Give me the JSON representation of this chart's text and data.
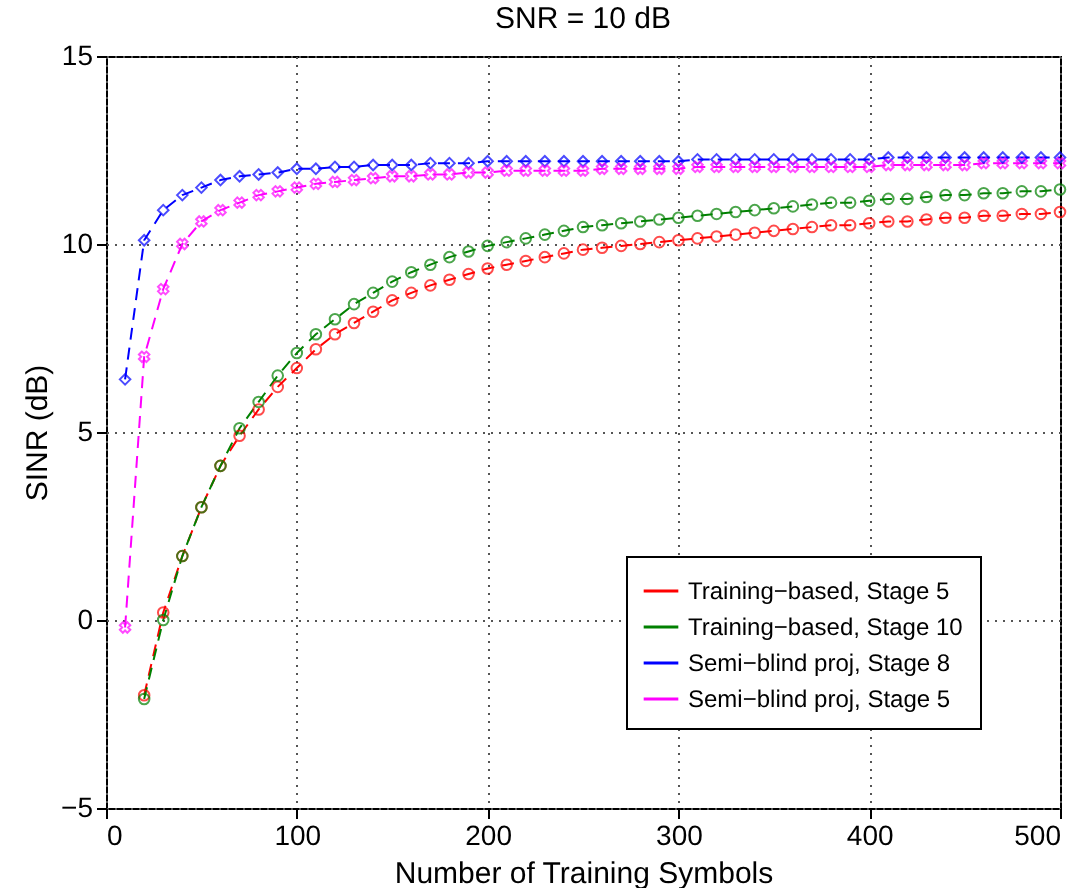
{
  "chart_data": {
    "type": "line",
    "title": "SNR = 10 dB",
    "xlabel": "Number of Training Symbols",
    "ylabel": "SINR (dB)",
    "x": [
      10,
      20,
      30,
      40,
      50,
      60,
      70,
      80,
      90,
      100,
      110,
      120,
      130,
      140,
      150,
      160,
      170,
      180,
      190,
      200,
      210,
      220,
      230,
      240,
      250,
      260,
      270,
      280,
      290,
      300,
      310,
      320,
      330,
      340,
      350,
      360,
      370,
      380,
      390,
      400,
      410,
      420,
      430,
      440,
      450,
      460,
      470,
      480,
      490,
      500
    ],
    "xlim": [
      0,
      500
    ],
    "xticks": [
      0,
      100,
      200,
      300,
      400,
      500
    ],
    "ylim": [
      -5,
      15
    ],
    "yticks": [
      -5,
      0,
      5,
      10,
      15
    ],
    "grid": true,
    "legend": "bottom right",
    "line_style": "dashed",
    "series": [
      {
        "name": "Training−based, Stage 5",
        "color": "#ff0000",
        "marker": "circle",
        "values": [
          null,
          -2.0,
          0.2,
          1.7,
          3.0,
          4.1,
          4.9,
          5.6,
          6.2,
          6.7,
          7.2,
          7.6,
          7.9,
          8.2,
          8.5,
          8.7,
          8.9,
          9.05,
          9.2,
          9.35,
          9.45,
          9.55,
          9.65,
          9.75,
          9.85,
          9.9,
          9.95,
          10.0,
          10.05,
          10.1,
          10.15,
          10.2,
          10.25,
          10.3,
          10.35,
          10.4,
          10.45,
          10.5,
          10.5,
          10.55,
          10.6,
          10.6,
          10.65,
          10.7,
          10.7,
          10.75,
          10.75,
          10.8,
          10.8,
          10.85
        ]
      },
      {
        "name": "Training−based, Stage 10",
        "color": "#008000",
        "marker": "circle",
        "values": [
          null,
          -2.1,
          0.0,
          1.7,
          3.0,
          4.1,
          5.1,
          5.8,
          6.5,
          7.1,
          7.6,
          8.0,
          8.4,
          8.7,
          9.0,
          9.25,
          9.45,
          9.65,
          9.8,
          9.95,
          10.05,
          10.15,
          10.25,
          10.35,
          10.45,
          10.5,
          10.55,
          10.6,
          10.65,
          10.7,
          10.75,
          10.8,
          10.85,
          10.9,
          10.95,
          11.0,
          11.05,
          11.1,
          11.1,
          11.15,
          11.2,
          11.2,
          11.25,
          11.3,
          11.3,
          11.35,
          11.35,
          11.4,
          11.4,
          11.45
        ]
      },
      {
        "name": "Semi−blind proj, Stage 8",
        "color": "#0000ff",
        "marker": "diamond",
        "values": [
          6.4,
          10.1,
          10.9,
          11.3,
          11.5,
          11.7,
          11.8,
          11.85,
          11.9,
          12.0,
          12.0,
          12.05,
          12.05,
          12.1,
          12.1,
          12.1,
          12.15,
          12.15,
          12.15,
          12.2,
          12.2,
          12.2,
          12.2,
          12.2,
          12.2,
          12.2,
          12.2,
          12.2,
          12.2,
          12.2,
          12.25,
          12.25,
          12.25,
          12.25,
          12.25,
          12.25,
          12.25,
          12.25,
          12.25,
          12.25,
          12.3,
          12.3,
          12.3,
          12.3,
          12.3,
          12.3,
          12.3,
          12.3,
          12.3,
          12.3
        ]
      },
      {
        "name": "Semi−blind proj, Stage 5",
        "color": "#ff00ff",
        "marker": "cross",
        "values": [
          -0.2,
          7.0,
          8.8,
          10.0,
          10.6,
          10.9,
          11.1,
          11.3,
          11.4,
          11.5,
          11.6,
          11.65,
          11.7,
          11.75,
          11.8,
          11.8,
          11.85,
          11.85,
          11.9,
          11.9,
          11.95,
          11.95,
          11.95,
          11.95,
          11.95,
          12.0,
          12.0,
          12.0,
          12.0,
          12.0,
          12.05,
          12.05,
          12.05,
          12.05,
          12.05,
          12.05,
          12.05,
          12.05,
          12.05,
          12.05,
          12.1,
          12.1,
          12.1,
          12.1,
          12.1,
          12.15,
          12.15,
          12.15,
          12.15,
          12.15
        ]
      }
    ]
  }
}
